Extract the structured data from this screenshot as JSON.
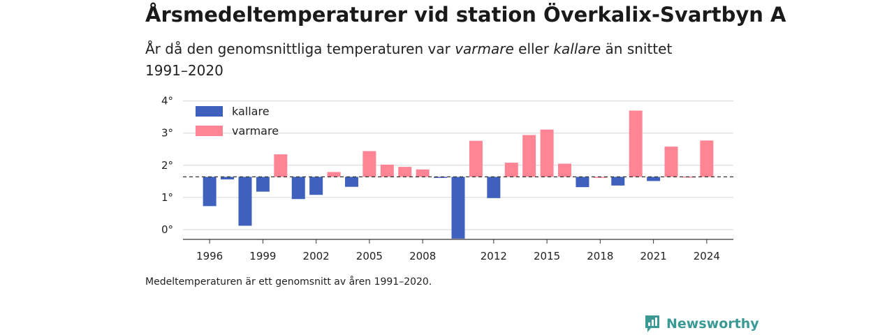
{
  "title": "Årsmedeltemperaturer vid station Överkalix-Svartbyn A",
  "subtitle": {
    "part1": "År då den genomsnittliga temperaturen var ",
    "warm_word": "varmare",
    "part2": " eller ",
    "cold_word": "kallare",
    "part3": " än snittet 1991–2020"
  },
  "footnote": "Medeltemperaturen är ett genomsnitt av åren 1991–2020.",
  "brand": {
    "name": "Newsworthy",
    "icon": "newsworthy-logo-icon",
    "color": "#3a9a93"
  },
  "chart_data": {
    "type": "bar",
    "baseline": 1.64,
    "ylim": [
      -0.3,
      4.0
    ],
    "yticks": [
      0,
      1,
      2,
      3,
      4
    ],
    "ytick_labels": [
      "0°",
      "1°",
      "2°",
      "3°",
      "4°"
    ],
    "xticks": [
      1996,
      1999,
      2002,
      2005,
      2008,
      2012,
      2015,
      2018,
      2021,
      2024
    ],
    "xlim": [
      1994.5,
      2025.5
    ],
    "grid": true,
    "legend_position": "top-left",
    "colors": {
      "kallare": "#4060bd",
      "varmare": "#ff8595"
    },
    "series": [
      {
        "name": "kallare",
        "color": "#4060bd"
      },
      {
        "name": "varmare",
        "color": "#ff8595"
      }
    ],
    "years": [
      1996,
      1997,
      1998,
      1999,
      2000,
      2001,
      2002,
      2003,
      2004,
      2005,
      2006,
      2007,
      2008,
      2009,
      2010,
      2011,
      2012,
      2013,
      2014,
      2015,
      2016,
      2017,
      2018,
      2019,
      2020,
      2021,
      2022,
      2023,
      2024
    ],
    "values": [
      0.73,
      1.56,
      0.12,
      1.18,
      2.34,
      0.95,
      1.08,
      1.79,
      1.33,
      2.44,
      2.02,
      1.95,
      1.87,
      1.61,
      -0.28,
      2.76,
      0.98,
      2.08,
      2.94,
      3.11,
      2.05,
      1.32,
      1.64,
      1.37,
      3.7,
      1.51,
      2.58,
      1.65,
      2.77
    ]
  }
}
